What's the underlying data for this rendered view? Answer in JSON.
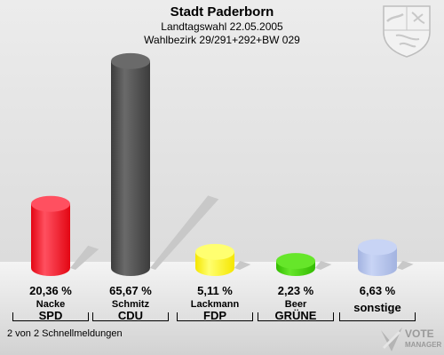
{
  "header": {
    "title": "Stadt Paderborn",
    "subtitle": "Landtagswahl 22.05.2005",
    "district": "Wahlbezirk 29/291+292+BW 029"
  },
  "footer": {
    "text": "2 von 2 Schnellmeldungen"
  },
  "logo": {
    "line1": "VOTE",
    "line2": "MANAGER"
  },
  "crest": {
    "icon": "nrw-coat-of-arms-icon"
  },
  "chart_data": {
    "type": "bar",
    "ylim": [
      0,
      100
    ],
    "categories": [
      "SPD",
      "CDU",
      "FDP",
      "GRÜNE",
      "sonstige"
    ],
    "series": [
      {
        "values": [
          20.36,
          65.67,
          5.11,
          2.23,
          6.63
        ],
        "value_labels": [
          "20,36 %",
          "65,67 %",
          "5,11 %",
          "2,23 %",
          "6,63 %"
        ]
      }
    ],
    "candidates": [
      "Nacke",
      "Schmitz",
      "Lackmann",
      "Beer",
      ""
    ],
    "colors": [
      "#e30613",
      "#3c3c3c",
      "#f5e600",
      "#33bb00",
      "#a3b3e0"
    ],
    "colors_light": [
      "#ff5060",
      "#6a6a6a",
      "#ffff70",
      "#66e62a",
      "#c8d4f5"
    ]
  }
}
